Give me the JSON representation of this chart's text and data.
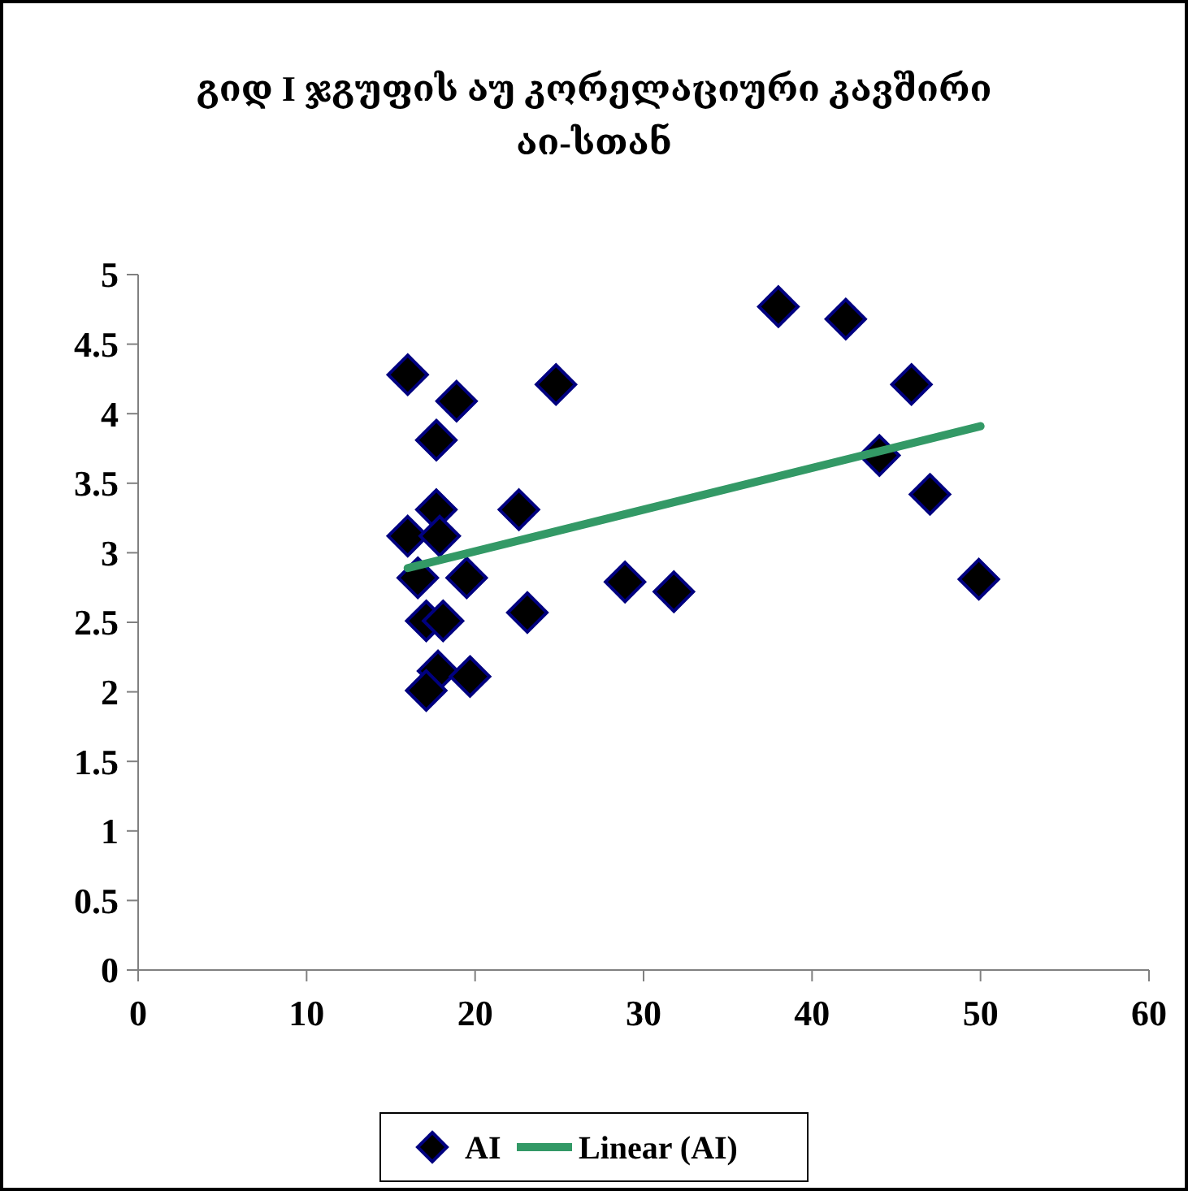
{
  "chart_data": {
    "type": "scatter",
    "title": "გიდ I ჯგუფის აუ კორელაციური კავშირი აი-სთან",
    "xlim": [
      0,
      60
    ],
    "xticks": [
      0,
      10,
      20,
      30,
      40,
      50,
      60
    ],
    "ylim": [
      0,
      5
    ],
    "yticks": [
      0,
      0.5,
      1,
      1.5,
      2,
      2.5,
      3,
      3.5,
      4,
      4.5,
      5
    ],
    "grid": false,
    "legend": "bottom",
    "series": [
      {
        "name": "AI",
        "marker": "diamond",
        "color": "#000000",
        "x": [
          16.0,
          18.9,
          17.7,
          24.8,
          17.7,
          22.6,
          16.0,
          17.9,
          16.6,
          19.5,
          17.1,
          18.1,
          23.1,
          28.9,
          31.8,
          17.8,
          19.7,
          17.1,
          38.0,
          42.0,
          45.9,
          44.0,
          47.0,
          49.9
        ],
        "values": [
          4.28,
          4.09,
          3.81,
          4.21,
          3.31,
          3.31,
          3.12,
          3.12,
          2.82,
          2.82,
          2.51,
          2.51,
          2.57,
          2.79,
          2.72,
          2.15,
          2.11,
          2.01,
          4.77,
          4.68,
          4.21,
          3.7,
          3.42,
          2.81
        ]
      },
      {
        "name": "Linear (AI)",
        "type": "line",
        "color": "#339966",
        "x": [
          16.0,
          50.0
        ],
        "values": [
          2.89,
          3.91
        ]
      }
    ]
  }
}
